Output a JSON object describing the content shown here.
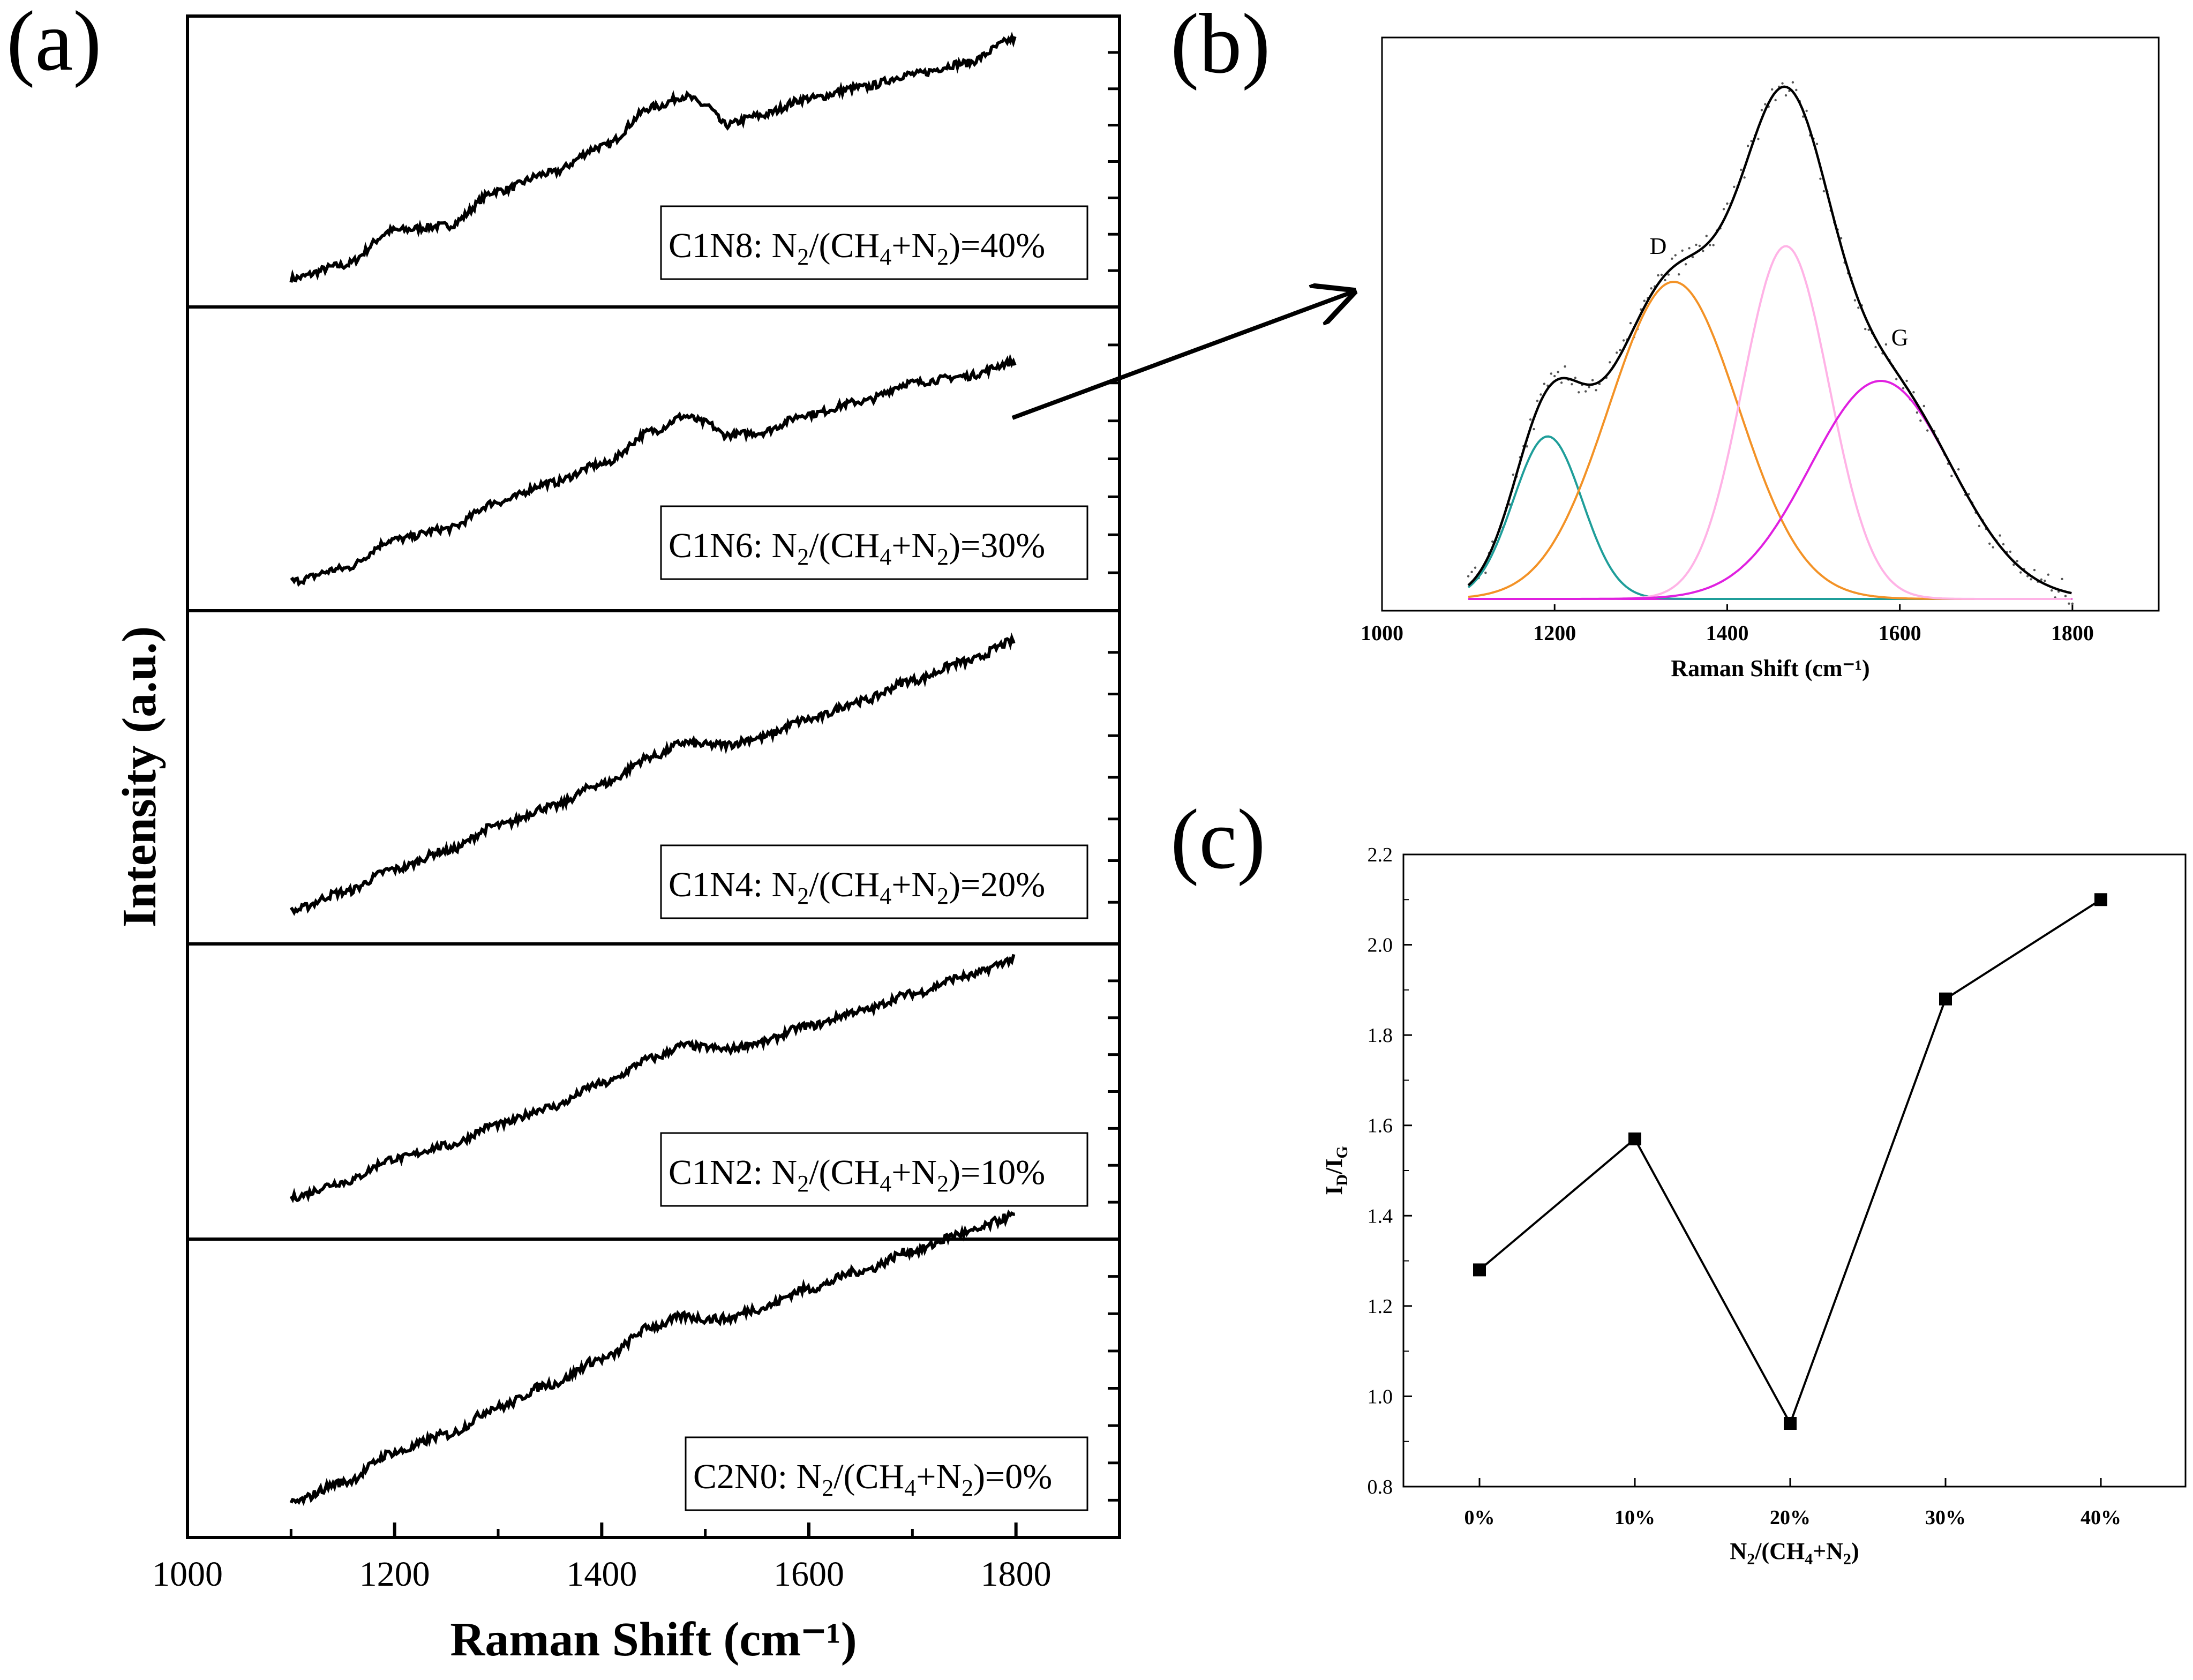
{
  "figure": {
    "panel_labels": {
      "a": "(a)",
      "b": "(b)",
      "c": "(c)"
    }
  },
  "chart_data": [
    {
      "panel": "a",
      "type": "line",
      "xlabel": "Raman Shift (cm⁻¹)",
      "ylabel": "Intensity (a.u.)",
      "xlim": [
        1000,
        1900
      ],
      "xticks": [
        1000,
        1200,
        1400,
        1600,
        1800
      ],
      "x_range": [
        1100,
        1800
      ],
      "color": "#000000",
      "series": [
        {
          "name": "C1N8: N₂/(CH₄+N₂)=40%",
          "label": {
            "sample": "C1N8",
            "percent": "40%"
          },
          "x": [
            1100,
            1150,
            1200,
            1250,
            1300,
            1350,
            1400,
            1450,
            1480,
            1500,
            1520,
            1550,
            1600,
            1650,
            1700,
            1750,
            1800
          ],
          "y": [
            0.0,
            0.06,
            0.22,
            0.24,
            0.4,
            0.48,
            0.6,
            0.78,
            0.83,
            0.79,
            0.7,
            0.74,
            0.82,
            0.87,
            0.93,
            0.98,
            1.09
          ]
        },
        {
          "name": "C1N6: N₂/(CH₄+N₂)=30%",
          "label": {
            "sample": "C1N6",
            "percent": "30%"
          },
          "x": [
            1100,
            1150,
            1200,
            1250,
            1300,
            1350,
            1400,
            1450,
            1480,
            1500,
            1520,
            1550,
            1600,
            1650,
            1700,
            1750,
            1800
          ],
          "y": [
            0.0,
            0.06,
            0.2,
            0.25,
            0.38,
            0.47,
            0.56,
            0.72,
            0.79,
            0.76,
            0.7,
            0.71,
            0.8,
            0.86,
            0.95,
            0.98,
            1.05
          ]
        },
        {
          "name": "C1N4: N₂/(CH₄+N₂)=20%",
          "label": {
            "sample": "C1N4",
            "percent": "20%"
          },
          "x": [
            1100,
            1150,
            1200,
            1250,
            1300,
            1350,
            1400,
            1450,
            1480,
            1500,
            1520,
            1550,
            1600,
            1650,
            1700,
            1750,
            1800
          ],
          "y": [
            0.0,
            0.08,
            0.18,
            0.26,
            0.37,
            0.45,
            0.55,
            0.67,
            0.73,
            0.72,
            0.72,
            0.75,
            0.83,
            0.91,
            1.0,
            1.08,
            1.17
          ]
        },
        {
          "name": "C1N2: N₂/(CH₄+N₂)=10%",
          "label": {
            "sample": "C1N2",
            "percent": "10%"
          },
          "x": [
            1100,
            1150,
            1200,
            1250,
            1300,
            1350,
            1400,
            1450,
            1480,
            1500,
            1520,
            1550,
            1600,
            1650,
            1700,
            1750,
            1800
          ],
          "y": [
            0.0,
            0.07,
            0.18,
            0.24,
            0.34,
            0.42,
            0.53,
            0.65,
            0.71,
            0.7,
            0.69,
            0.72,
            0.8,
            0.87,
            0.95,
            1.03,
            1.11
          ]
        },
        {
          "name": "C2N0: N₂/(CH₄+N₂)=0%",
          "label": {
            "sample": "C2N0",
            "percent": "0%"
          },
          "x": [
            1100,
            1150,
            1200,
            1250,
            1300,
            1350,
            1400,
            1450,
            1480,
            1500,
            1520,
            1550,
            1600,
            1650,
            1700,
            1750,
            1800
          ],
          "y": [
            0.0,
            0.08,
            0.2,
            0.27,
            0.38,
            0.47,
            0.57,
            0.7,
            0.74,
            0.73,
            0.73,
            0.77,
            0.85,
            0.92,
            1.0,
            1.07,
            1.14
          ]
        }
      ]
    },
    {
      "panel": "b",
      "type": "line",
      "xlabel": "Raman Shift (cm⁻¹)",
      "xlim": [
        1000,
        1900
      ],
      "xticks": [
        1000,
        1200,
        1400,
        1600,
        1800
      ],
      "ylim": [
        0,
        1.25
      ],
      "annotations": [
        {
          "text": "D",
          "x": 1320,
          "y": 0.87
        },
        {
          "text": "G",
          "x": 1600,
          "y": 0.64
        }
      ],
      "components": [
        {
          "name": "peak-1190",
          "center": 1192,
          "sigma": 40,
          "amplitude": 0.41,
          "color": "#1f9e9a"
        },
        {
          "name": "D",
          "center": 1338,
          "sigma": 75,
          "amplitude": 0.8,
          "color": "#f39226"
        },
        {
          "name": "peak-1468",
          "center": 1468,
          "sigma": 50,
          "amplitude": 0.89,
          "color": "#ffb3e6"
        },
        {
          "name": "G",
          "center": 1578,
          "sigma": 82,
          "amplitude": 0.55,
          "color": "#e020e0"
        }
      ],
      "fit_color": "#000000",
      "x_range": [
        1100,
        1800
      ]
    },
    {
      "panel": "c",
      "type": "line",
      "xlabel": "N₂/(CH₄+N₂)",
      "ylabel": "I_D/I_G",
      "xlabel_parts": {
        "n": "N",
        "n_sub": "2",
        "mid": "/(CH",
        "ch_sub": "4",
        "end": "+N",
        "end_sub": "2",
        "close": ")"
      },
      "ylabel_parts": {
        "i1": "I",
        "sub1": "D",
        "slash": "/I",
        "sub2": "G"
      },
      "categories": [
        "0%",
        "10%",
        "20%",
        "30%",
        "40%"
      ],
      "values": [
        1.28,
        1.57,
        0.94,
        1.88,
        2.1
      ],
      "ylim": [
        0.8,
        2.2
      ],
      "yticks": [
        "0.8",
        "1.0",
        "1.2",
        "1.4",
        "1.6",
        "1.8",
        "2.0",
        "2.2"
      ],
      "marker": "square",
      "color": "#000000"
    }
  ]
}
